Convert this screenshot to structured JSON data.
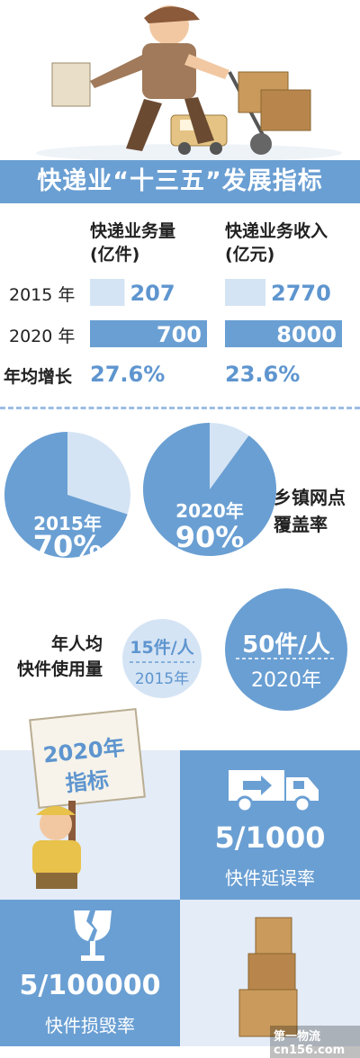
{
  "title": "快递业“十三五”发展指标",
  "chart_data": [
    {
      "type": "table",
      "columns": [
        "快递业务量\n(亿件)",
        "快递业务收入\n(亿元)"
      ],
      "col1_label_line1": "快递业务量",
      "col1_label_line2": "(亿件)",
      "col2_label_line1": "快递业务收入",
      "col2_label_line2": "(亿元)",
      "rows": [
        {
          "label": "2015 年",
          "volume": 207,
          "revenue": 2770
        },
        {
          "label": "2020 年",
          "volume": 700,
          "revenue": 8000
        }
      ],
      "growth_label": "年均增长",
      "growth": {
        "volume": "27.6%",
        "revenue": "23.6%"
      }
    },
    {
      "type": "pie",
      "caption_line1": "乡镇网点",
      "caption_line2": "覆盖率",
      "slices": [
        {
          "year": "2015年",
          "value": 70,
          "label": "70%"
        },
        {
          "year": "2020年",
          "value": 90,
          "label": "90%"
        }
      ]
    }
  ],
  "per_capita": {
    "label_line1": "年人均",
    "label_line2": "快件使用量",
    "y2015_value": "15件/人",
    "y2015_year": "2015年",
    "y2020_value": "50件/人",
    "y2020_year": "2020年"
  },
  "targets": {
    "sign_line1": "2020年",
    "sign_line2": "指标",
    "delay_rate": "5/1000",
    "delay_label": "快件延误率",
    "damage_rate": "5/100000",
    "damage_label": "快件损毁率"
  },
  "watermark": "第一物流 cn156.com",
  "colors": {
    "accent": "#6a9fd3",
    "light_bar": "#d5e4f4",
    "dark_bar": "#6a9fd3",
    "pie_light": "#d5e4f4",
    "text_blue": "#5e95cf"
  }
}
